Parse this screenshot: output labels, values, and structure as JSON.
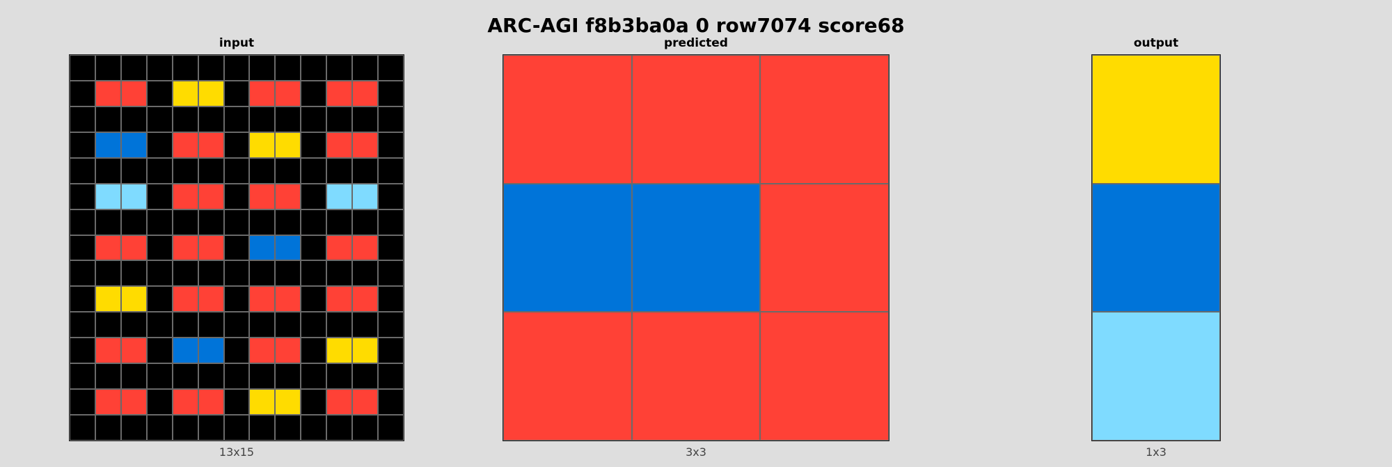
{
  "title": "ARC-AGI f8b3ba0a 0 row7074 score68",
  "palette": {
    "0": "#000000",
    "1": "#0074D9",
    "2": "#FF4136",
    "4": "#FFDC00",
    "8": "#7FDBFF"
  },
  "panels": {
    "input": {
      "label": "input",
      "dims": "13x15",
      "grid": [
        [
          0,
          0,
          0,
          0,
          0,
          0,
          0,
          0,
          0,
          0,
          0,
          0,
          0
        ],
        [
          0,
          2,
          2,
          0,
          4,
          4,
          0,
          2,
          2,
          0,
          2,
          2,
          0
        ],
        [
          0,
          0,
          0,
          0,
          0,
          0,
          0,
          0,
          0,
          0,
          0,
          0,
          0
        ],
        [
          0,
          1,
          1,
          0,
          2,
          2,
          0,
          4,
          4,
          0,
          2,
          2,
          0
        ],
        [
          0,
          0,
          0,
          0,
          0,
          0,
          0,
          0,
          0,
          0,
          0,
          0,
          0
        ],
        [
          0,
          8,
          8,
          0,
          2,
          2,
          0,
          2,
          2,
          0,
          8,
          8,
          0
        ],
        [
          0,
          0,
          0,
          0,
          0,
          0,
          0,
          0,
          0,
          0,
          0,
          0,
          0
        ],
        [
          0,
          2,
          2,
          0,
          2,
          2,
          0,
          1,
          1,
          0,
          2,
          2,
          0
        ],
        [
          0,
          0,
          0,
          0,
          0,
          0,
          0,
          0,
          0,
          0,
          0,
          0,
          0
        ],
        [
          0,
          4,
          4,
          0,
          2,
          2,
          0,
          2,
          2,
          0,
          2,
          2,
          0
        ],
        [
          0,
          0,
          0,
          0,
          0,
          0,
          0,
          0,
          0,
          0,
          0,
          0,
          0
        ],
        [
          0,
          2,
          2,
          0,
          1,
          1,
          0,
          2,
          2,
          0,
          4,
          4,
          0
        ],
        [
          0,
          0,
          0,
          0,
          0,
          0,
          0,
          0,
          0,
          0,
          0,
          0,
          0
        ],
        [
          0,
          2,
          2,
          0,
          2,
          2,
          0,
          4,
          4,
          0,
          2,
          2,
          0
        ],
        [
          0,
          0,
          0,
          0,
          0,
          0,
          0,
          0,
          0,
          0,
          0,
          0,
          0
        ]
      ]
    },
    "predicted": {
      "label": "predicted",
      "dims": "3x3",
      "grid": [
        [
          2,
          2,
          2
        ],
        [
          1,
          1,
          2
        ],
        [
          2,
          2,
          2
        ]
      ]
    },
    "output": {
      "label": "output",
      "dims": "1x3",
      "grid": [
        [
          4
        ],
        [
          1
        ],
        [
          8
        ]
      ]
    }
  }
}
